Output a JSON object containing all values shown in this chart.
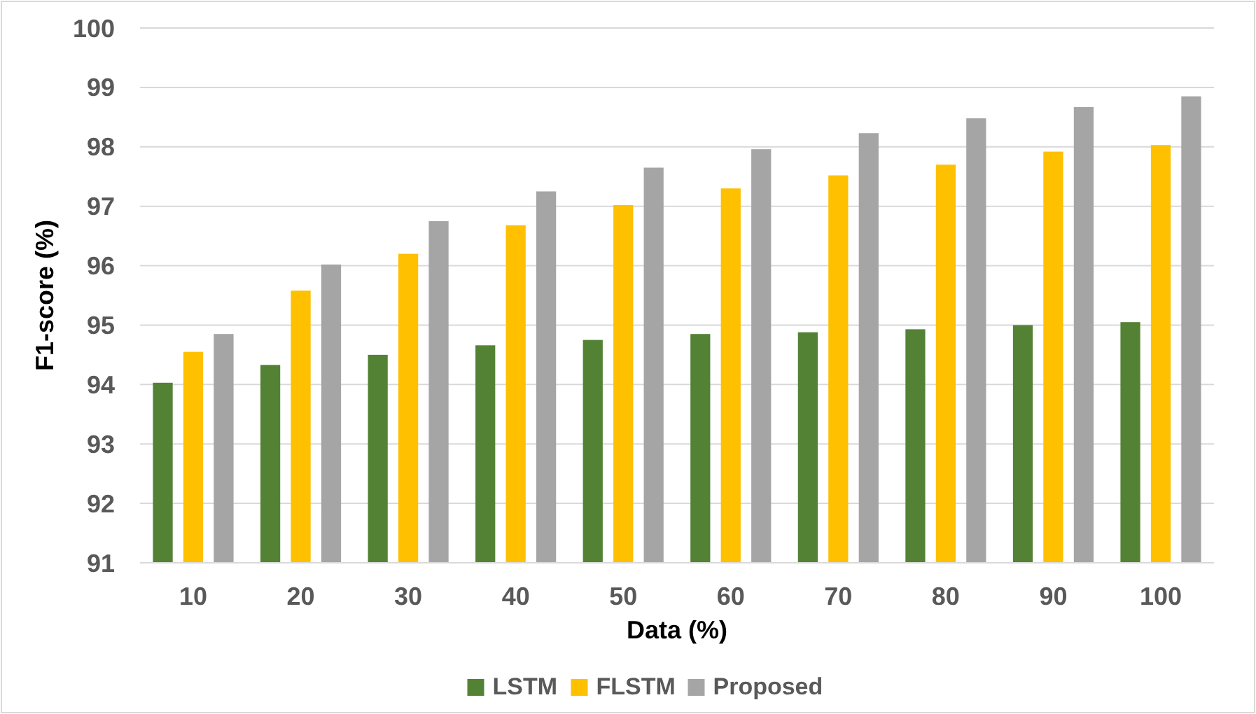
{
  "chart_data": {
    "type": "bar",
    "xlabel": "Data (%)",
    "ylabel": "F1-score (%)",
    "categories": [
      "10",
      "20",
      "30",
      "40",
      "50",
      "60",
      "70",
      "80",
      "90",
      "100"
    ],
    "series": [
      {
        "name": "LSTM",
        "color": "#548235",
        "values": [
          94.03,
          94.33,
          94.5,
          94.66,
          94.75,
          94.85,
          94.88,
          94.93,
          95.0,
          95.05
        ]
      },
      {
        "name": "FLSTM",
        "color": "#ffc000",
        "values": [
          94.55,
          95.58,
          96.2,
          96.68,
          97.02,
          97.3,
          97.52,
          97.7,
          97.92,
          98.03
        ]
      },
      {
        "name": "Proposed",
        "color": "#a5a5a5",
        "values": [
          94.85,
          96.02,
          96.75,
          97.25,
          97.65,
          97.96,
          98.23,
          98.48,
          98.67,
          98.85
        ]
      }
    ],
    "ylim": [
      91,
      100
    ],
    "yticks": [
      91,
      92,
      93,
      94,
      95,
      96,
      97,
      98,
      99,
      100
    ],
    "grid": "y",
    "legend": "bottom"
  }
}
